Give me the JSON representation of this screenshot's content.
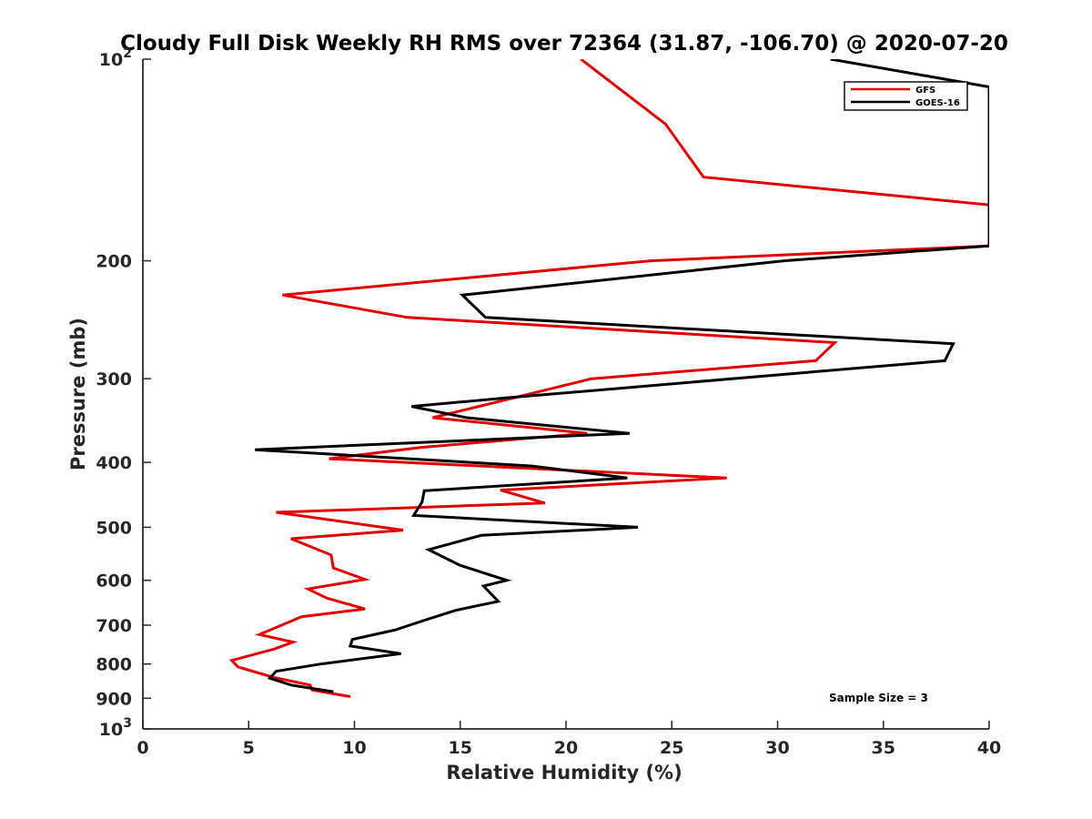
{
  "chart_data": {
    "type": "line",
    "title": "Cloudy Full Disk Weekly RH RMS over 72364 (31.87, -106.70) @ 2020-07-20",
    "xlabel": "Relative Humidity (%)",
    "ylabel": "Pressure (mb)",
    "xlim": [
      0,
      40
    ],
    "ylim": [
      100,
      1000
    ],
    "y_scale": "log",
    "y_reversed": true,
    "grid": false,
    "legend_position": "top-right",
    "x_ticks": [
      "0",
      "5",
      "10",
      "15",
      "20",
      "25",
      "30",
      "35",
      "40"
    ],
    "y_ticks": [
      {
        "value": 100,
        "base": "10",
        "exp": "2"
      },
      {
        "value": 200,
        "label": "200"
      },
      {
        "value": 300,
        "label": "300"
      },
      {
        "value": 400,
        "label": "400"
      },
      {
        "value": 500,
        "label": "500"
      },
      {
        "value": 600,
        "label": "600"
      },
      {
        "value": 700,
        "label": "700"
      },
      {
        "value": 800,
        "label": "800"
      },
      {
        "value": 900,
        "label": "900"
      },
      {
        "value": 1000,
        "base": "10",
        "exp": "3"
      }
    ],
    "series": [
      {
        "name": "GFS",
        "color": "#e00000",
        "points": [
          [
            20.7,
            100
          ],
          [
            24.7,
            125
          ],
          [
            26.5,
            150
          ],
          [
            40,
            165
          ],
          [
            40,
            190
          ],
          [
            24.0,
            200
          ],
          [
            6.6,
            225
          ],
          [
            12.5,
            243
          ],
          [
            32.7,
            265
          ],
          [
            31.8,
            282
          ],
          [
            21.2,
            300
          ],
          [
            13.7,
            343
          ],
          [
            21.0,
            362
          ],
          [
            13.1,
            380
          ],
          [
            8.8,
            395
          ],
          [
            27.6,
            422
          ],
          [
            16.9,
            440
          ],
          [
            19.0,
            460
          ],
          [
            6.3,
            475
          ],
          [
            12.3,
            505
          ],
          [
            7.0,
            520
          ],
          [
            8.9,
            550
          ],
          [
            9.0,
            575
          ],
          [
            10.5,
            598
          ],
          [
            7.8,
            618
          ],
          [
            8.7,
            638
          ],
          [
            10.5,
            662
          ],
          [
            7.5,
            680
          ],
          [
            6.1,
            710
          ],
          [
            5.5,
            723
          ],
          [
            7.1,
            742
          ],
          [
            6.2,
            760
          ],
          [
            4.2,
            790
          ],
          [
            4.5,
            808
          ],
          [
            6.2,
            838
          ],
          [
            7.9,
            860
          ],
          [
            8.0,
            875
          ],
          [
            9.8,
            895
          ]
        ]
      },
      {
        "name": "GOES-16",
        "color": "#000000",
        "points": [
          [
            32.5,
            100
          ],
          [
            40,
            110
          ],
          [
            40,
            190
          ],
          [
            30.3,
            200
          ],
          [
            15.1,
            225
          ],
          [
            16.2,
            243
          ],
          [
            38.3,
            266
          ],
          [
            37.9,
            282
          ],
          [
            17.4,
            320
          ],
          [
            12.7,
            330
          ],
          [
            15.3,
            343
          ],
          [
            23.0,
            362
          ],
          [
            5.3,
            383
          ],
          [
            18.4,
            405
          ],
          [
            22.9,
            422
          ],
          [
            13.3,
            441
          ],
          [
            13.2,
            458
          ],
          [
            12.8,
            480
          ],
          [
            23.4,
            500
          ],
          [
            16.0,
            514
          ],
          [
            13.5,
            540
          ],
          [
            15.0,
            570
          ],
          [
            17.2,
            600
          ],
          [
            16.1,
            612
          ],
          [
            16.8,
            645
          ],
          [
            14.8,
            665
          ],
          [
            13.2,
            690
          ],
          [
            11.9,
            712
          ],
          [
            9.9,
            735
          ],
          [
            9.8,
            752
          ],
          [
            12.2,
            772
          ],
          [
            8.4,
            800
          ],
          [
            6.3,
            820
          ],
          [
            6.0,
            840
          ],
          [
            7.0,
            860
          ],
          [
            9.0,
            880
          ]
        ]
      }
    ],
    "legend": [
      "GFS",
      "GOES-16"
    ],
    "annotation": "Sample Size = 3"
  }
}
